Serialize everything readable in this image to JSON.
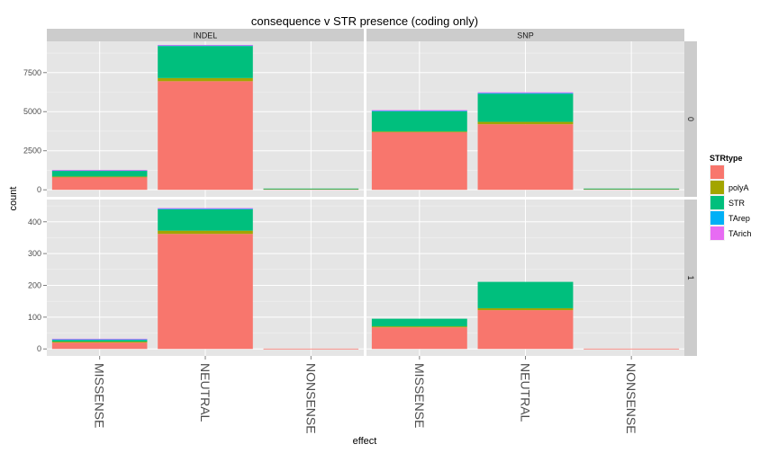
{
  "chart_data": {
    "type": "bar",
    "title": "consequence v STR presence (coding only)",
    "xlabel": "effect",
    "ylabel": "count",
    "categories": [
      "MISSENSE",
      "NEUTRAL",
      "NONSENSE"
    ],
    "col_facets": [
      "INDEL",
      "SNP"
    ],
    "row_facets": [
      "0",
      "1"
    ],
    "legend": {
      "title": "STRtype",
      "placement": "right",
      "entries": [
        {
          "label": "",
          "color": "#F8766D"
        },
        {
          "label": "polyA",
          "color": "#A3A500"
        },
        {
          "label": "STR",
          "color": "#00BF7D"
        },
        {
          "label": "TArep",
          "color": "#00B0F6"
        },
        {
          "label": "TArich",
          "color": "#E76BF3"
        }
      ]
    },
    "rows": [
      {
        "facet": "0",
        "ylim": [
          -450,
          9500
        ],
        "yticks": [
          0,
          2500,
          5000,
          7500
        ],
        "panels": [
          {
            "facet": "INDEL",
            "bars": [
              {
                "category": "MISSENSE",
                "stack": [
                  820,
                  30,
                  370,
                  30,
                  20
                ]
              },
              {
                "category": "NEUTRAL",
                "stack": [
                  6950,
                  200,
                  2050,
                  50,
                  20
                ]
              },
              {
                "category": "NONSENSE",
                "stack": [
                  60,
                  5,
                  15,
                  0,
                  0
                ]
              }
            ]
          },
          {
            "facet": "SNP",
            "bars": [
              {
                "category": "MISSENSE",
                "stack": [
                  3700,
                  30,
                  1300,
                  30,
                  40
                ]
              },
              {
                "category": "NEUTRAL",
                "stack": [
                  4200,
                  150,
                  1800,
                  40,
                  50
                ]
              },
              {
                "category": "NONSENSE",
                "stack": [
                  60,
                  5,
                  15,
                  0,
                  0
                ]
              }
            ]
          }
        ]
      },
      {
        "facet": "1",
        "ylim": [
          -22,
          470
        ],
        "yticks": [
          0,
          100,
          200,
          300,
          400
        ],
        "panels": [
          {
            "facet": "INDEL",
            "bars": [
              {
                "category": "MISSENSE",
                "stack": [
                  20,
                  3,
                  5,
                  3,
                  1
                ]
              },
              {
                "category": "NEUTRAL",
                "stack": [
                  362,
                  10,
                  67,
                  3,
                  1
                ]
              },
              {
                "category": "NONSENSE",
                "stack": [
                  1,
                  0,
                  0,
                  0,
                  0
                ]
              }
            ]
          },
          {
            "facet": "SNP",
            "bars": [
              {
                "category": "MISSENSE",
                "stack": [
                  68,
                  3,
                  24,
                  0,
                  0
                ]
              },
              {
                "category": "NEUTRAL",
                "stack": [
                  122,
                  6,
                  83,
                  0,
                  0
                ]
              },
              {
                "category": "NONSENSE",
                "stack": [
                  1,
                  0,
                  0,
                  0,
                  0
                ]
              }
            ]
          }
        ]
      }
    ]
  }
}
